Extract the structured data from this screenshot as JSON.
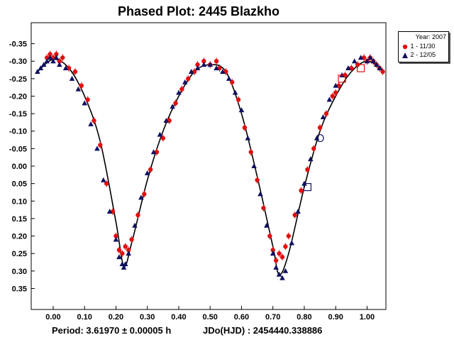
{
  "chart_data": {
    "type": "scatter",
    "title": "Phased Plot: 2445 Blazkho",
    "xlabel": "",
    "ylabel": "",
    "xlim": [
      -0.07,
      1.06
    ],
    "ylim": [
      0.41,
      -0.41
    ],
    "x_ticks": [
      "0.00",
      "0.10",
      "0.20",
      "0.30",
      "0.40",
      "0.50",
      "0.60",
      "0.70",
      "0.80",
      "0.90",
      "1.00"
    ],
    "y_ticks": [
      "-0.35",
      "-0.30",
      "-0.25",
      "-0.20",
      "-0.15",
      "-0.10",
      "-0.05",
      "0.00",
      "0.05",
      "0.10",
      "0.15",
      "0.20",
      "0.25",
      "0.30",
      "0.35"
    ],
    "y_inverted": true,
    "grid": false,
    "legend_placement": "outside-right-top",
    "legend": {
      "header": "Year: 2007",
      "entries": [
        {
          "label": "1 - 11/30",
          "marker": "circle",
          "color": "#e01010"
        },
        {
          "label": "2 - 12/05",
          "marker": "triangle",
          "color": "#101060"
        }
      ]
    },
    "fit_curve": {
      "color": "#000000",
      "x": [
        -0.05,
        0.0,
        0.05,
        0.1,
        0.15,
        0.2,
        0.225,
        0.25,
        0.3,
        0.35,
        0.4,
        0.45,
        0.5,
        0.55,
        0.6,
        0.65,
        0.7,
        0.72,
        0.75,
        0.8,
        0.85,
        0.9,
        0.95,
        1.0,
        1.05
      ],
      "y": [
        -0.27,
        -0.305,
        -0.28,
        -0.2,
        -0.07,
        0.16,
        0.285,
        0.22,
        0.04,
        -0.1,
        -0.2,
        -0.27,
        -0.29,
        -0.27,
        -0.15,
        0.03,
        0.23,
        0.31,
        0.25,
        0.06,
        -0.1,
        -0.2,
        -0.27,
        -0.3,
        -0.275
      ]
    },
    "series": [
      {
        "name": "1 - 11/30",
        "marker": "circle",
        "color": "#e01010",
        "x": [
          -0.02,
          -0.01,
          0.0,
          0.01,
          0.02,
          0.03,
          0.05,
          0.07,
          0.09,
          0.11,
          0.13,
          0.15,
          0.17,
          0.19,
          0.2,
          0.21,
          0.22,
          0.23,
          0.24,
          0.25,
          0.27,
          0.29,
          0.31,
          0.33,
          0.35,
          0.37,
          0.39,
          0.41,
          0.43,
          0.45,
          0.46,
          0.48,
          0.5,
          0.52,
          0.53,
          0.55,
          0.57,
          0.59,
          0.61,
          0.63,
          0.65,
          0.67,
          0.69,
          0.7,
          0.71,
          0.72,
          0.73,
          0.74,
          0.75,
          0.77,
          0.79,
          0.81,
          0.83,
          0.85,
          0.87,
          0.89,
          0.9,
          0.91,
          0.93,
          0.95,
          0.97,
          0.99,
          1.0,
          1.01,
          1.02,
          1.03,
          1.04,
          1.05
        ],
        "y": [
          -0.31,
          -0.32,
          -0.31,
          -0.32,
          -0.3,
          -0.31,
          -0.28,
          -0.27,
          -0.23,
          -0.19,
          -0.13,
          -0.06,
          0.05,
          0.13,
          0.2,
          0.24,
          0.25,
          0.23,
          0.24,
          0.21,
          0.14,
          0.08,
          0.01,
          -0.04,
          -0.08,
          -0.13,
          -0.18,
          -0.22,
          -0.25,
          -0.27,
          -0.29,
          -0.3,
          -0.29,
          -0.3,
          -0.28,
          -0.27,
          -0.24,
          -0.19,
          -0.11,
          -0.04,
          0.04,
          0.12,
          0.2,
          0.24,
          0.27,
          0.25,
          0.26,
          0.23,
          0.2,
          0.14,
          0.07,
          0.01,
          -0.05,
          -0.11,
          -0.15,
          -0.2,
          -0.21,
          -0.23,
          -0.26,
          -0.28,
          -0.29,
          -0.31,
          -0.3,
          -0.31,
          -0.3,
          -0.29,
          -0.28,
          -0.27
        ]
      },
      {
        "name": "2 - 12/05",
        "marker": "triangle",
        "color": "#101060",
        "x": [
          -0.05,
          -0.04,
          -0.03,
          -0.02,
          -0.01,
          0.0,
          0.01,
          0.02,
          0.04,
          0.06,
          0.08,
          0.1,
          0.12,
          0.14,
          0.16,
          0.18,
          0.2,
          0.21,
          0.22,
          0.225,
          0.23,
          0.24,
          0.26,
          0.28,
          0.3,
          0.32,
          0.34,
          0.36,
          0.38,
          0.4,
          0.42,
          0.44,
          0.46,
          0.48,
          0.5,
          0.52,
          0.54,
          0.56,
          0.58,
          0.6,
          0.62,
          0.64,
          0.66,
          0.68,
          0.7,
          0.71,
          0.72,
          0.73,
          0.74,
          0.76,
          0.78,
          0.8,
          0.82,
          0.84,
          0.86,
          0.88,
          0.9,
          0.92,
          0.94,
          0.96,
          0.98,
          1.0,
          1.01,
          1.02,
          1.03,
          1.04
        ],
        "y": [
          -0.27,
          -0.28,
          -0.29,
          -0.3,
          -0.31,
          -0.3,
          -0.31,
          -0.29,
          -0.28,
          -0.25,
          -0.22,
          -0.18,
          -0.12,
          -0.05,
          0.04,
          0.13,
          0.21,
          0.26,
          0.28,
          0.29,
          0.28,
          0.25,
          0.17,
          0.09,
          0.02,
          -0.04,
          -0.09,
          -0.13,
          -0.17,
          -0.21,
          -0.24,
          -0.27,
          -0.28,
          -0.29,
          -0.29,
          -0.28,
          -0.27,
          -0.25,
          -0.21,
          -0.16,
          -0.08,
          0.0,
          0.08,
          0.17,
          0.25,
          0.29,
          0.31,
          0.32,
          0.3,
          0.22,
          0.13,
          0.05,
          -0.02,
          -0.08,
          -0.14,
          -0.19,
          -0.23,
          -0.26,
          -0.28,
          -0.3,
          -0.31,
          -0.3,
          -0.31,
          -0.3,
          -0.29,
          -0.28
        ]
      }
    ],
    "open_markers": [
      {
        "shape": "square",
        "color": "#e01010",
        "x": 0.92,
        "y": -0.25
      },
      {
        "shape": "square",
        "color": "#e01010",
        "x": 0.98,
        "y": -0.28
      },
      {
        "shape": "circle",
        "color": "#101060",
        "x": 0.85,
        "y": -0.08
      },
      {
        "shape": "square",
        "color": "#101060",
        "x": 0.81,
        "y": 0.06
      }
    ]
  },
  "footer": {
    "period": "Period: 3.61970 ± 0.00005 h",
    "jd": "JDo(HJD) : 2454440.338886"
  }
}
